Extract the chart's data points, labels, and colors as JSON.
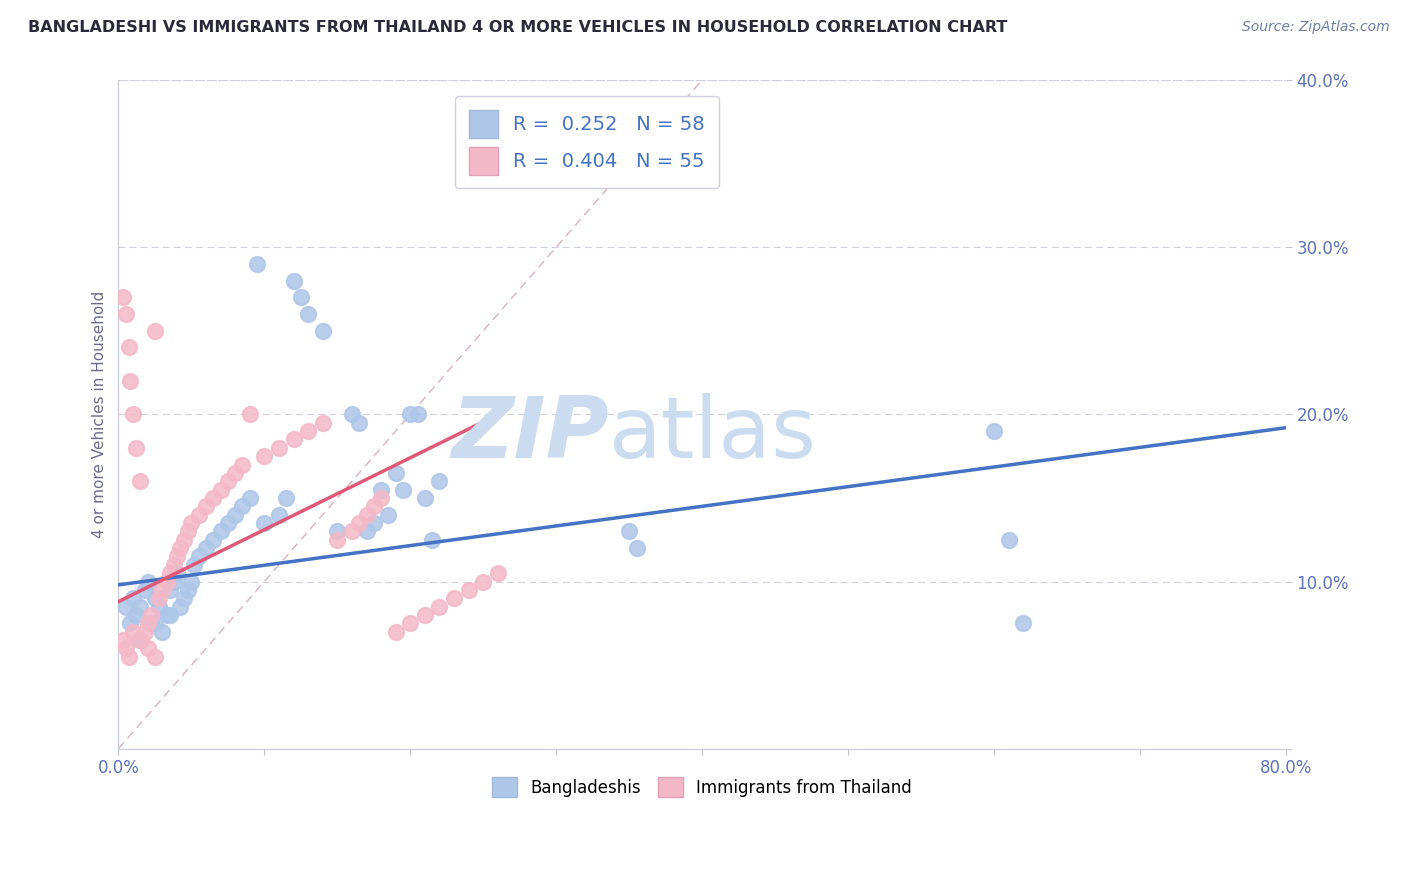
{
  "title": "BANGLADESHI VS IMMIGRANTS FROM THAILAND 4 OR MORE VEHICLES IN HOUSEHOLD CORRELATION CHART",
  "source": "Source: ZipAtlas.com",
  "ylabel": "4 or more Vehicles in Household",
  "xlim": [
    0.0,
    0.8
  ],
  "ylim": [
    0.0,
    0.4
  ],
  "xticks": [
    0.0,
    0.1,
    0.2,
    0.3,
    0.4,
    0.5,
    0.6,
    0.7,
    0.8
  ],
  "yticks": [
    0.0,
    0.1,
    0.2,
    0.3,
    0.4
  ],
  "xtick_labels": [
    "0.0%",
    "",
    "",
    "",
    "",
    "",
    "",
    "",
    "80.0%"
  ],
  "ytick_labels": [
    "",
    "10.0%",
    "20.0%",
    "30.0%",
    "40.0%"
  ],
  "legend_labels": [
    "Bangladeshis",
    "Immigrants from Thailand"
  ],
  "r_blue": 0.252,
  "n_blue": 58,
  "r_pink": 0.404,
  "n_pink": 55,
  "blue_color": "#aec6e8",
  "pink_color": "#f4b8c8",
  "blue_line_color": "#4472c4",
  "pink_line_color": "#e05878",
  "legend_text_color": "#4472c4",
  "watermark_zip_color": "#ccdcf0",
  "watermark_atlas_color": "#ccdcf0",
  "grid_color": "#d0d0dc",
  "title_color": "#2a2a3a",
  "tick_color": "#5a72b8",
  "blue_trend": [
    0.0,
    0.098,
    0.8,
    0.192
  ],
  "pink_trend": [
    0.0,
    0.088,
    0.265,
    0.202
  ],
  "diag_line": [
    0.0,
    0.0,
    0.4,
    0.4
  ],
  "blue_x": [
    0.005,
    0.008,
    0.01,
    0.012,
    0.015,
    0.018,
    0.02,
    0.022,
    0.025,
    0.028,
    0.03,
    0.033,
    0.035,
    0.038,
    0.04,
    0.042,
    0.045,
    0.048,
    0.05,
    0.052,
    0.055,
    0.06,
    0.065,
    0.07,
    0.075,
    0.08,
    0.085,
    0.09,
    0.095,
    0.1,
    0.11,
    0.115,
    0.12,
    0.125,
    0.13,
    0.14,
    0.15,
    0.16,
    0.165,
    0.17,
    0.175,
    0.18,
    0.185,
    0.19,
    0.195,
    0.2,
    0.205,
    0.21,
    0.215,
    0.22,
    0.35,
    0.355,
    0.6,
    0.61,
    0.62,
    0.015,
    0.025,
    0.035
  ],
  "blue_y": [
    0.085,
    0.075,
    0.09,
    0.08,
    0.085,
    0.095,
    0.1,
    0.075,
    0.09,
    0.085,
    0.07,
    0.08,
    0.095,
    0.1,
    0.105,
    0.085,
    0.09,
    0.095,
    0.1,
    0.11,
    0.115,
    0.12,
    0.125,
    0.13,
    0.135,
    0.14,
    0.145,
    0.15,
    0.29,
    0.135,
    0.14,
    0.15,
    0.28,
    0.27,
    0.26,
    0.25,
    0.13,
    0.2,
    0.195,
    0.13,
    0.135,
    0.155,
    0.14,
    0.165,
    0.155,
    0.2,
    0.2,
    0.15,
    0.125,
    0.16,
    0.13,
    0.12,
    0.19,
    0.125,
    0.075,
    0.065,
    0.075,
    0.08
  ],
  "pink_x": [
    0.003,
    0.005,
    0.007,
    0.008,
    0.01,
    0.012,
    0.015,
    0.018,
    0.02,
    0.022,
    0.025,
    0.028,
    0.03,
    0.033,
    0.035,
    0.038,
    0.04,
    0.042,
    0.045,
    0.048,
    0.05,
    0.055,
    0.06,
    0.065,
    0.07,
    0.075,
    0.08,
    0.085,
    0.09,
    0.1,
    0.11,
    0.12,
    0.13,
    0.14,
    0.15,
    0.16,
    0.165,
    0.17,
    0.175,
    0.18,
    0.19,
    0.2,
    0.21,
    0.22,
    0.23,
    0.24,
    0.25,
    0.26,
    0.003,
    0.005,
    0.007,
    0.01,
    0.015,
    0.02,
    0.025
  ],
  "pink_y": [
    0.27,
    0.26,
    0.24,
    0.22,
    0.2,
    0.18,
    0.16,
    0.07,
    0.075,
    0.08,
    0.25,
    0.09,
    0.095,
    0.1,
    0.105,
    0.11,
    0.115,
    0.12,
    0.125,
    0.13,
    0.135,
    0.14,
    0.145,
    0.15,
    0.155,
    0.16,
    0.165,
    0.17,
    0.2,
    0.175,
    0.18,
    0.185,
    0.19,
    0.195,
    0.125,
    0.13,
    0.135,
    0.14,
    0.145,
    0.15,
    0.07,
    0.075,
    0.08,
    0.085,
    0.09,
    0.095,
    0.1,
    0.105,
    0.065,
    0.06,
    0.055,
    0.07,
    0.065,
    0.06,
    0.055
  ]
}
